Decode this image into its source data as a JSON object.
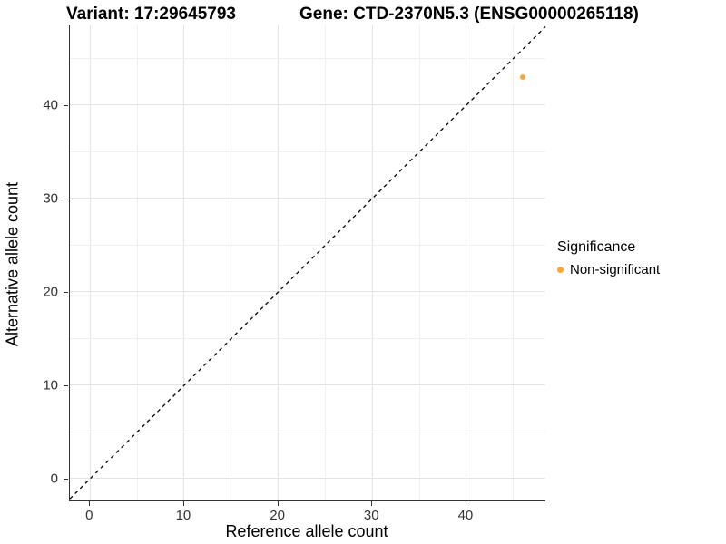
{
  "titles": {
    "variant": "Variant: 17:29645793",
    "gene": "Gene: CTD-2370N5.3 (ENSG00000265118)"
  },
  "chart_data": {
    "type": "scatter",
    "xlabel": "Reference allele count",
    "ylabel": "Alternative allele count",
    "xlim": [
      -2.15,
      48.4
    ],
    "ylim": [
      -2.33,
      48.54
    ],
    "x_ticks": [
      0,
      10,
      20,
      30,
      40
    ],
    "y_ticks": [
      0,
      10,
      20,
      30,
      40
    ],
    "grid": true,
    "gridline_step": 5,
    "points": [
      {
        "x": 46,
        "y": 43,
        "series": "Non-significant"
      }
    ],
    "reference_line": {
      "type": "identity y=x",
      "style": "dashed",
      "color": "#000000"
    },
    "legend": {
      "title": "Significance",
      "position": "right",
      "items": [
        {
          "label": "Non-significant",
          "color": "#f9a63f"
        }
      ]
    }
  },
  "colors": {
    "point": "#f9a63f",
    "grid_major": "#e4e4e4",
    "grid_minor": "#efefef",
    "axis": "#333333",
    "text": "#000000"
  }
}
